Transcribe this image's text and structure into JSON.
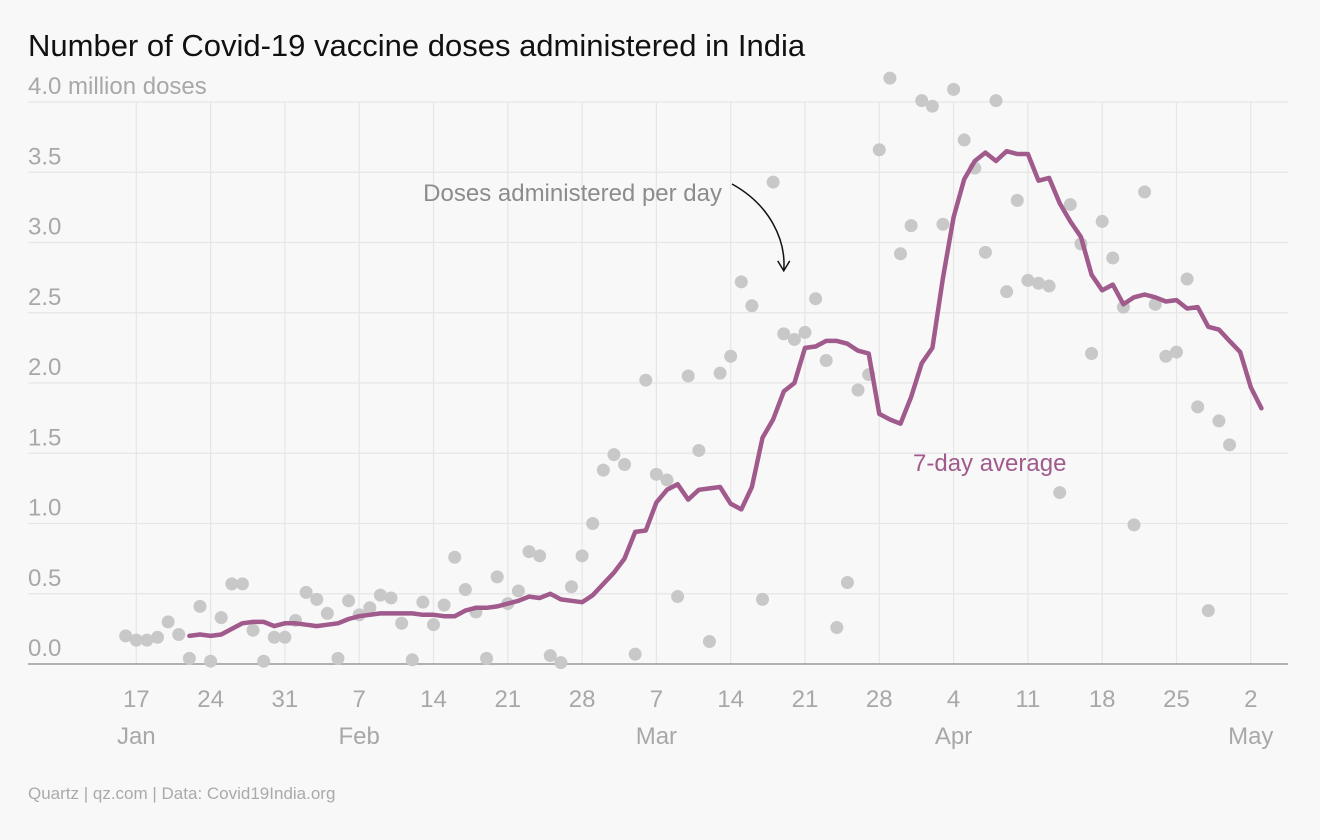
{
  "title": "Number of Covid-19 vaccine doses administered in India",
  "source": "Quartz | qz.com | Data: Covid19India.org",
  "colors": {
    "points": "#c8c8c8",
    "average": "#a05a8c",
    "grid": "#e6e6e6",
    "axis": "#999999",
    "text": "#a8a8a8"
  },
  "chart_data": {
    "type": "scatter",
    "title": "Number of Covid-19 vaccine doses administered in India",
    "ylabel": "million doses",
    "ylim": [
      0,
      4.0
    ],
    "yticks": [
      {
        "value": 0.0,
        "label": "0.0"
      },
      {
        "value": 0.5,
        "label": "0.5"
      },
      {
        "value": 1.0,
        "label": "1.0"
      },
      {
        "value": 1.5,
        "label": "1.5"
      },
      {
        "value": 2.0,
        "label": "2.0"
      },
      {
        "value": 2.5,
        "label": "2.5"
      },
      {
        "value": 3.0,
        "label": "3.0"
      },
      {
        "value": 3.5,
        "label": "3.5"
      },
      {
        "value": 4.0,
        "label": "4.0 million doses"
      }
    ],
    "xrange": [
      "2021-01-16",
      "2021-05-04"
    ],
    "xticks": [
      {
        "date": "2021-01-17",
        "day": "17",
        "month": "Jan"
      },
      {
        "date": "2021-01-24",
        "day": "24",
        "month": ""
      },
      {
        "date": "2021-01-31",
        "day": "31",
        "month": ""
      },
      {
        "date": "2021-02-07",
        "day": "7",
        "month": "Feb"
      },
      {
        "date": "2021-02-14",
        "day": "14",
        "month": ""
      },
      {
        "date": "2021-02-21",
        "day": "21",
        "month": ""
      },
      {
        "date": "2021-02-28",
        "day": "28",
        "month": ""
      },
      {
        "date": "2021-03-07",
        "day": "7",
        "month": "Mar"
      },
      {
        "date": "2021-03-14",
        "day": "14",
        "month": ""
      },
      {
        "date": "2021-03-21",
        "day": "21",
        "month": ""
      },
      {
        "date": "2021-03-28",
        "day": "28",
        "month": ""
      },
      {
        "date": "2021-04-04",
        "day": "4",
        "month": "Apr"
      },
      {
        "date": "2021-04-11",
        "day": "11",
        "month": ""
      },
      {
        "date": "2021-04-18",
        "day": "18",
        "month": ""
      },
      {
        "date": "2021-04-25",
        "day": "25",
        "month": ""
      },
      {
        "date": "2021-05-02",
        "day": "2",
        "month": "May"
      }
    ],
    "grid": true,
    "series": [
      {
        "name": "Doses administered per day",
        "kind": "scatter",
        "points": [
          [
            "2021-01-16",
            0.2
          ],
          [
            "2021-01-17",
            0.17
          ],
          [
            "2021-01-18",
            0.17
          ],
          [
            "2021-01-19",
            0.19
          ],
          [
            "2021-01-20",
            0.3
          ],
          [
            "2021-01-21",
            0.21
          ],
          [
            "2021-01-22",
            0.04
          ],
          [
            "2021-01-23",
            0.41
          ],
          [
            "2021-01-24",
            0.02
          ],
          [
            "2021-01-25",
            0.33
          ],
          [
            "2021-01-26",
            0.57
          ],
          [
            "2021-01-27",
            0.57
          ],
          [
            "2021-01-28",
            0.24
          ],
          [
            "2021-01-29",
            0.02
          ],
          [
            "2021-01-30",
            0.19
          ],
          [
            "2021-01-31",
            0.19
          ],
          [
            "2021-02-01",
            0.31
          ],
          [
            "2021-02-02",
            0.51
          ],
          [
            "2021-02-03",
            0.46
          ],
          [
            "2021-02-04",
            0.36
          ],
          [
            "2021-02-05",
            0.04
          ],
          [
            "2021-02-06",
            0.45
          ],
          [
            "2021-02-07",
            0.35
          ],
          [
            "2021-02-08",
            0.4
          ],
          [
            "2021-02-09",
            0.49
          ],
          [
            "2021-02-10",
            0.47
          ],
          [
            "2021-02-11",
            0.29
          ],
          [
            "2021-02-12",
            0.03
          ],
          [
            "2021-02-13",
            0.44
          ],
          [
            "2021-02-14",
            0.28
          ],
          [
            "2021-02-15",
            0.42
          ],
          [
            "2021-02-16",
            0.76
          ],
          [
            "2021-02-17",
            0.53
          ],
          [
            "2021-02-18",
            0.37
          ],
          [
            "2021-02-19",
            0.04
          ],
          [
            "2021-02-20",
            0.62
          ],
          [
            "2021-02-21",
            0.43
          ],
          [
            "2021-02-22",
            0.52
          ],
          [
            "2021-02-23",
            0.8
          ],
          [
            "2021-02-24",
            0.77
          ],
          [
            "2021-02-25",
            0.06
          ],
          [
            "2021-02-26",
            0.01
          ],
          [
            "2021-02-27",
            0.55
          ],
          [
            "2021-02-28",
            0.77
          ],
          [
            "2021-03-01",
            1.0
          ],
          [
            "2021-03-02",
            1.38
          ],
          [
            "2021-03-03",
            1.49
          ],
          [
            "2021-03-04",
            1.42
          ],
          [
            "2021-03-05",
            0.07
          ],
          [
            "2021-03-06",
            2.02
          ],
          [
            "2021-03-07",
            1.35
          ],
          [
            "2021-03-08",
            1.31
          ],
          [
            "2021-03-09",
            0.48
          ],
          [
            "2021-03-10",
            2.05
          ],
          [
            "2021-03-11",
            1.52
          ],
          [
            "2021-03-12",
            0.16
          ],
          [
            "2021-03-13",
            2.07
          ],
          [
            "2021-03-14",
            2.19
          ],
          [
            "2021-03-15",
            2.72
          ],
          [
            "2021-03-16",
            2.55
          ],
          [
            "2021-03-17",
            0.46
          ],
          [
            "2021-03-18",
            3.43
          ],
          [
            "2021-03-19",
            2.35
          ],
          [
            "2021-03-20",
            2.31
          ],
          [
            "2021-03-21",
            2.36
          ],
          [
            "2021-03-22",
            2.6
          ],
          [
            "2021-03-23",
            2.16
          ],
          [
            "2021-03-24",
            0.26
          ],
          [
            "2021-03-25",
            0.58
          ],
          [
            "2021-03-26",
            1.95
          ],
          [
            "2021-03-27",
            2.06
          ],
          [
            "2021-03-28",
            3.66
          ],
          [
            "2021-03-29",
            4.17
          ],
          [
            "2021-03-30",
            2.92
          ],
          [
            "2021-03-31",
            3.12
          ],
          [
            "2021-04-01",
            4.01
          ],
          [
            "2021-04-02",
            3.97
          ],
          [
            "2021-04-03",
            3.13
          ],
          [
            "2021-04-04",
            4.09
          ],
          [
            "2021-04-05",
            3.73
          ],
          [
            "2021-04-06",
            3.53
          ],
          [
            "2021-04-07",
            2.93
          ],
          [
            "2021-04-08",
            4.01
          ],
          [
            "2021-04-09",
            2.65
          ],
          [
            "2021-04-10",
            3.3
          ],
          [
            "2021-04-11",
            2.73
          ],
          [
            "2021-04-12",
            2.71
          ],
          [
            "2021-04-13",
            2.69
          ],
          [
            "2021-04-14",
            1.22
          ],
          [
            "2021-04-15",
            3.27
          ],
          [
            "2021-04-16",
            2.99
          ],
          [
            "2021-04-17",
            2.21
          ],
          [
            "2021-04-18",
            3.15
          ],
          [
            "2021-04-19",
            2.89
          ],
          [
            "2021-04-20",
            2.54
          ],
          [
            "2021-04-21",
            0.99
          ],
          [
            "2021-04-22",
            3.36
          ],
          [
            "2021-04-23",
            2.56
          ],
          [
            "2021-04-24",
            2.19
          ],
          [
            "2021-04-25",
            2.22
          ],
          [
            "2021-04-26",
            2.74
          ],
          [
            "2021-04-27",
            1.83
          ],
          [
            "2021-04-28",
            0.38
          ],
          [
            "2021-04-29",
            1.73
          ],
          [
            "2021-04-30",
            1.56
          ]
        ]
      },
      {
        "name": "7-day average",
        "kind": "line",
        "points": [
          [
            "2021-01-22",
            0.2
          ],
          [
            "2021-01-23",
            0.21
          ],
          [
            "2021-01-24",
            0.2
          ],
          [
            "2021-01-25",
            0.21
          ],
          [
            "2021-01-26",
            0.25
          ],
          [
            "2021-01-27",
            0.29
          ],
          [
            "2021-01-28",
            0.3
          ],
          [
            "2021-01-29",
            0.3
          ],
          [
            "2021-01-30",
            0.27
          ],
          [
            "2021-01-31",
            0.29
          ],
          [
            "2021-02-01",
            0.29
          ],
          [
            "2021-02-02",
            0.28
          ],
          [
            "2021-02-03",
            0.27
          ],
          [
            "2021-02-04",
            0.28
          ],
          [
            "2021-02-05",
            0.29
          ],
          [
            "2021-02-06",
            0.32
          ],
          [
            "2021-02-07",
            0.34
          ],
          [
            "2021-02-08",
            0.35
          ],
          [
            "2021-02-09",
            0.36
          ],
          [
            "2021-02-10",
            0.36
          ],
          [
            "2021-02-11",
            0.36
          ],
          [
            "2021-02-12",
            0.36
          ],
          [
            "2021-02-13",
            0.35
          ],
          [
            "2021-02-14",
            0.35
          ],
          [
            "2021-02-15",
            0.34
          ],
          [
            "2021-02-16",
            0.34
          ],
          [
            "2021-02-17",
            0.38
          ],
          [
            "2021-02-18",
            0.4
          ],
          [
            "2021-02-19",
            0.4
          ],
          [
            "2021-02-20",
            0.41
          ],
          [
            "2021-02-21",
            0.43
          ],
          [
            "2021-02-22",
            0.45
          ],
          [
            "2021-02-23",
            0.48
          ],
          [
            "2021-02-24",
            0.47
          ],
          [
            "2021-02-25",
            0.5
          ],
          [
            "2021-02-26",
            0.46
          ],
          [
            "2021-02-27",
            0.45
          ],
          [
            "2021-02-28",
            0.44
          ],
          [
            "2021-03-01",
            0.49
          ],
          [
            "2021-03-02",
            0.57
          ],
          [
            "2021-03-03",
            0.65
          ],
          [
            "2021-03-04",
            0.75
          ],
          [
            "2021-03-05",
            0.94
          ],
          [
            "2021-03-06",
            0.95
          ],
          [
            "2021-03-07",
            1.15
          ],
          [
            "2021-03-08",
            1.24
          ],
          [
            "2021-03-09",
            1.28
          ],
          [
            "2021-03-10",
            1.17
          ],
          [
            "2021-03-11",
            1.24
          ],
          [
            "2021-03-12",
            1.25
          ],
          [
            "2021-03-13",
            1.26
          ],
          [
            "2021-03-14",
            1.14
          ],
          [
            "2021-03-15",
            1.1
          ],
          [
            "2021-03-16",
            1.26
          ],
          [
            "2021-03-17",
            1.61
          ],
          [
            "2021-03-18",
            1.74
          ],
          [
            "2021-03-19",
            1.94
          ],
          [
            "2021-03-20",
            2.0
          ],
          [
            "2021-03-21",
            2.25
          ],
          [
            "2021-03-22",
            2.26
          ],
          [
            "2021-03-23",
            2.3
          ],
          [
            "2021-03-24",
            2.3
          ],
          [
            "2021-03-25",
            2.28
          ],
          [
            "2021-03-26",
            2.23
          ],
          [
            "2021-03-27",
            2.21
          ],
          [
            "2021-03-28",
            1.78
          ],
          [
            "2021-03-29",
            1.74
          ],
          [
            "2021-03-30",
            1.71
          ],
          [
            "2021-03-31",
            1.9
          ],
          [
            "2021-04-01",
            2.14
          ],
          [
            "2021-04-02",
            2.25
          ],
          [
            "2021-04-03",
            2.75
          ],
          [
            "2021-04-04",
            3.18
          ],
          [
            "2021-04-05",
            3.45
          ],
          [
            "2021-04-06",
            3.58
          ],
          [
            "2021-04-07",
            3.64
          ],
          [
            "2021-04-08",
            3.58
          ],
          [
            "2021-04-09",
            3.65
          ],
          [
            "2021-04-10",
            3.63
          ],
          [
            "2021-04-11",
            3.63
          ],
          [
            "2021-04-12",
            3.44
          ],
          [
            "2021-04-13",
            3.46
          ],
          [
            "2021-04-14",
            3.28
          ],
          [
            "2021-04-15",
            3.15
          ],
          [
            "2021-04-16",
            3.04
          ],
          [
            "2021-04-17",
            2.77
          ],
          [
            "2021-04-18",
            2.66
          ],
          [
            "2021-04-19",
            2.7
          ],
          [
            "2021-04-20",
            2.56
          ],
          [
            "2021-04-21",
            2.61
          ],
          [
            "2021-04-22",
            2.63
          ],
          [
            "2021-04-23",
            2.61
          ],
          [
            "2021-04-24",
            2.58
          ],
          [
            "2021-04-25",
            2.59
          ],
          [
            "2021-04-26",
            2.53
          ],
          [
            "2021-04-27",
            2.54
          ],
          [
            "2021-04-28",
            2.4
          ],
          [
            "2021-04-29",
            2.38
          ],
          [
            "2021-04-30",
            2.3
          ],
          [
            "2021-05-01",
            2.22
          ],
          [
            "2021-05-02",
            1.97
          ],
          [
            "2021-05-03",
            1.82
          ]
        ]
      }
    ],
    "annotations": [
      {
        "text": "Doses administered per day",
        "target": [
          "2021-03-19",
          2.72
        ]
      },
      {
        "text": "7-day average"
      }
    ]
  }
}
